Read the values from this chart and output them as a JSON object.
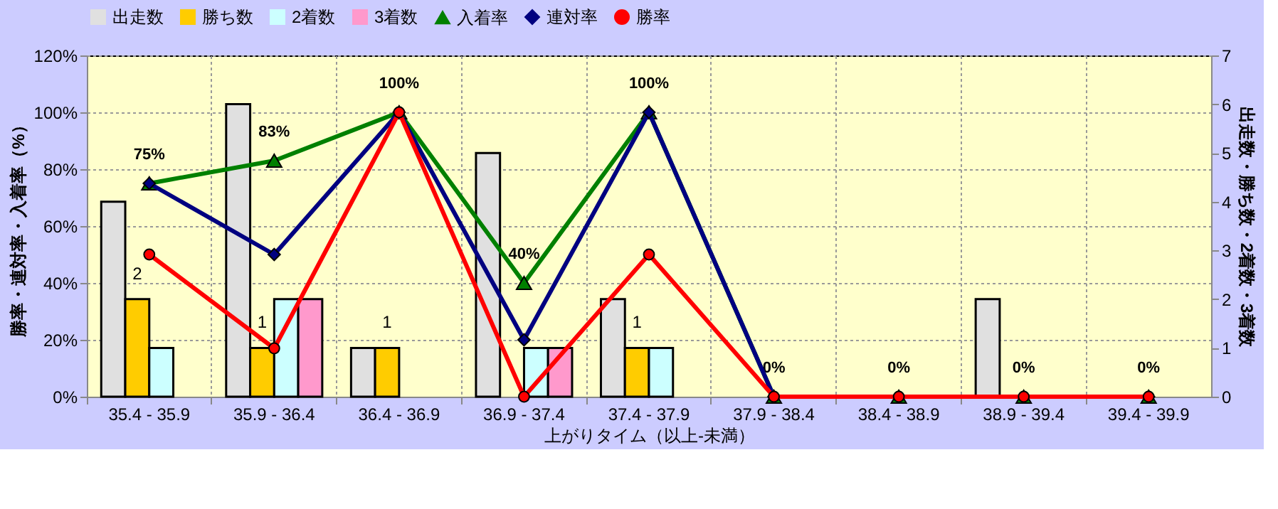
{
  "chart_data": {
    "type": "bar",
    "xlabel": "上がりタイム（以上-未満）",
    "ylabel": "勝率・連対率・入着率（%）",
    "y2label": "出走数・勝ち数・2着数・3着数",
    "categories": [
      "35.4 - 35.9",
      "35.9 - 36.4",
      "36.4 - 36.9",
      "36.9 - 37.4",
      "37.4 - 37.9",
      "37.9 - 38.4",
      "38.4 - 38.9",
      "38.9 - 39.4",
      "39.4 - 39.9"
    ],
    "series": [
      {
        "name": "出走数",
        "type": "bar",
        "axis": "y2",
        "color": "#e0e0e0",
        "values": [
          4,
          6,
          1,
          5,
          2,
          0,
          0,
          2,
          0
        ]
      },
      {
        "name": "勝ち数",
        "type": "bar",
        "axis": "y2",
        "color": "#ffcc00",
        "values": [
          2,
          1,
          1,
          0,
          1,
          0,
          0,
          0,
          0
        ],
        "value_labels": [
          "2",
          "1",
          "1",
          null,
          "1",
          null,
          null,
          null,
          null
        ]
      },
      {
        "name": "2着数",
        "type": "bar",
        "axis": "y2",
        "color": "#ccffff",
        "values": [
          1,
          2,
          0,
          1,
          1,
          0,
          0,
          0,
          0
        ]
      },
      {
        "name": "3着数",
        "type": "bar",
        "axis": "y2",
        "color": "#ff99cc",
        "values": [
          0,
          2,
          0,
          1,
          0,
          0,
          0,
          0,
          0
        ]
      },
      {
        "name": "入着率",
        "type": "line",
        "marker": "triangle",
        "color": "#008000",
        "values": [
          75,
          83,
          100,
          40,
          100,
          0,
          0,
          0,
          0
        ],
        "value_labels": [
          "75%",
          "83%",
          "100%",
          "40%",
          "100%",
          "0%",
          "0%",
          "0%",
          "0%"
        ]
      },
      {
        "name": "連対率",
        "type": "line",
        "marker": "diamond",
        "color": "#000080",
        "values": [
          75,
          50,
          100,
          20,
          100,
          0,
          0,
          0,
          0
        ]
      },
      {
        "name": "勝率",
        "type": "line",
        "marker": "circle",
        "color": "#ff0000",
        "values": [
          50,
          17,
          100,
          0,
          50,
          0,
          0,
          0,
          0
        ]
      }
    ],
    "ylim": [
      0,
      120
    ],
    "yticks": [
      {
        "value": 0,
        "label": "0%"
      },
      {
        "value": 20,
        "label": "20%"
      },
      {
        "value": 40,
        "label": "40%"
      },
      {
        "value": 60,
        "label": "60%"
      },
      {
        "value": 80,
        "label": "80%"
      },
      {
        "value": 100,
        "label": "100%"
      },
      {
        "value": 120,
        "label": "120%"
      }
    ],
    "y2lim": [
      0,
      7
    ],
    "y2ticks": [
      0,
      1,
      2,
      3,
      4,
      5,
      6,
      7
    ],
    "grid": true,
    "legend": "top left"
  }
}
